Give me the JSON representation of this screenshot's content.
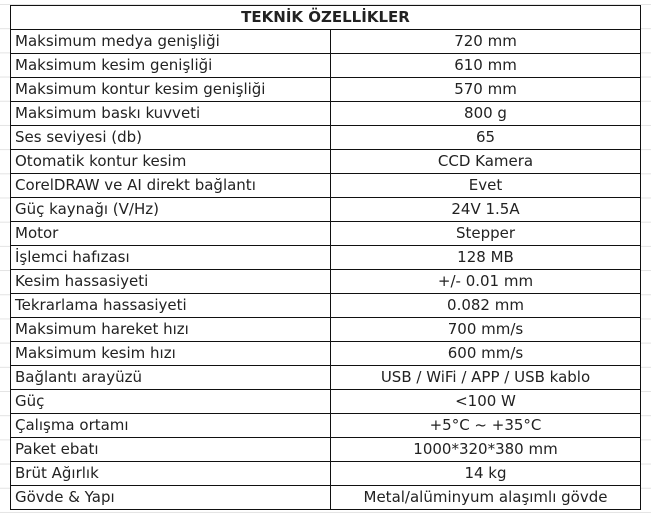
{
  "title": "TEKNİK ÖZELLİKLER",
  "rows": [
    {
      "label": "Maksimum medya genişliği",
      "value": "720 mm"
    },
    {
      "label": "Maksimum kesim genişliği",
      "value": "610 mm"
    },
    {
      "label": "Maksimum kontur kesim genişliği",
      "value": "570 mm"
    },
    {
      "label": "Maksimum baskı kuvveti",
      "value": "800 g"
    },
    {
      "label": "Ses seviyesi (db)",
      "value": "65"
    },
    {
      "label": "Otomatik kontur kesim",
      "value": "CCD Kamera"
    },
    {
      "label": "CorelDRAW ve AI direkt bağlantı",
      "value": "Evet"
    },
    {
      "label": "Güç kaynağı (V/Hz)",
      "value": "24V 1.5A"
    },
    {
      "label": "Motor",
      "value": "Stepper"
    },
    {
      "label": "İşlemci hafızası",
      "value": "128 MB"
    },
    {
      "label": "Kesim hassasiyeti",
      "value": "+/- 0.01 mm"
    },
    {
      "label": "Tekrarlama hassasiyeti",
      "value": "0.082 mm"
    },
    {
      "label": "Maksimum hareket hızı",
      "value": "700 mm/s"
    },
    {
      "label": "Maksimum kesim hızı",
      "value": "600 mm/s"
    },
    {
      "label": "Bağlantı arayüzü",
      "value": "USB / WiFi / APP / USB kablo"
    },
    {
      "label": "Güç",
      "value": "<100 W"
    },
    {
      "label": "Çalışma ortamı",
      "value": "+5°C ~ +35°C"
    },
    {
      "label": "Paket ebatı",
      "value": "1000*320*380 mm"
    },
    {
      "label": "Brüt Ağırlık",
      "value": "14 kg"
    },
    {
      "label": "Gövde & Yapı",
      "value": "Metal/alüminyum alaşımlı gövde"
    }
  ]
}
